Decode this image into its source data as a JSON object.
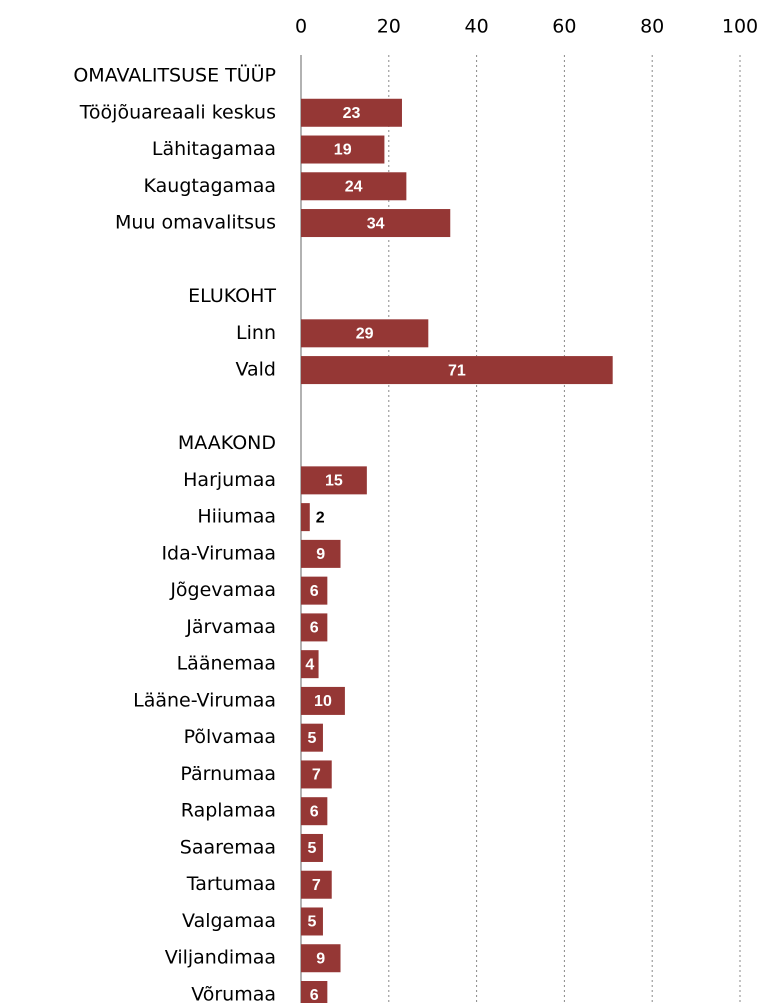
{
  "chart_data": {
    "type": "bar",
    "orientation": "horizontal",
    "color": "#953735",
    "categories": [
      "OMAVALITSUSE TÜÜP",
      "Tööjõuareaali keskus",
      "Lähitagamaa",
      "Kaugtagamaa",
      "Muu omavalitsus",
      null,
      "ELUKOHT",
      "Linn",
      "Vald",
      null,
      "MAAKOND",
      "Harjumaa",
      "Hiiumaa",
      "Ida-Virumaa",
      "Jõgevamaa",
      "Järvamaa",
      "Läänemaa",
      "Lääne-Virumaa",
      "Põlvamaa",
      "Pärnumaa",
      "Raplamaa",
      "Saaremaa",
      "Tartumaa",
      "Valgamaa",
      "Viljandimaa",
      "Võrumaa"
    ],
    "values": [
      null,
      23,
      19,
      24,
      34,
      null,
      null,
      29,
      71,
      null,
      null,
      15,
      2,
      9,
      6,
      6,
      4,
      10,
      5,
      7,
      6,
      5,
      7,
      5,
      9,
      6
    ],
    "xlim": [
      0,
      100
    ],
    "xticks": [
      0,
      20,
      40,
      60,
      80,
      100
    ],
    "grid": true
  }
}
